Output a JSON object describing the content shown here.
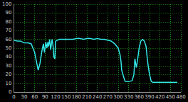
{
  "chart_data": {
    "type": "line",
    "color": "#33e6e6",
    "grid": true,
    "x": [
      0,
      10,
      20,
      30,
      40,
      50,
      60,
      65,
      70,
      75,
      80,
      85,
      88,
      92,
      95,
      98,
      100,
      103,
      106,
      108,
      110,
      113,
      115,
      118,
      120,
      125,
      130,
      140,
      150,
      160,
      170,
      180,
      190,
      200,
      210,
      220,
      230,
      240,
      250,
      260,
      270,
      280,
      290,
      300,
      305,
      308,
      310,
      315,
      320,
      330,
      340,
      345,
      348,
      352,
      355,
      360,
      365,
      370,
      375,
      380,
      383,
      386,
      390,
      395,
      400,
      410,
      420,
      430,
      440,
      450,
      460,
      470
    ],
    "values": [
      59,
      58,
      58,
      56,
      56,
      55,
      45,
      35,
      25,
      32,
      45,
      55,
      45,
      57,
      50,
      57,
      52,
      60,
      48,
      55,
      60,
      52,
      40,
      38,
      58,
      59,
      60,
      60,
      60,
      60,
      60,
      61,
      61,
      60,
      61,
      61,
      60,
      61,
      60,
      60,
      59,
      58,
      55,
      50,
      43,
      35,
      25,
      18,
      12,
      12,
      13,
      20,
      38,
      28,
      35,
      50,
      58,
      60,
      58,
      52,
      40,
      30,
      20,
      12,
      11,
      11,
      11,
      11,
      11,
      11,
      11,
      11
    ],
    "xlim": [
      0,
      480
    ],
    "xticks": [
      0,
      30,
      60,
      90,
      120,
      150,
      180,
      210,
      240,
      270,
      300,
      330,
      360,
      390,
      420,
      450,
      480
    ],
    "ylim": [
      0,
      100
    ],
    "yticks": [
      0,
      10,
      20,
      30,
      40,
      50,
      60,
      70,
      80,
      90,
      100
    ]
  }
}
